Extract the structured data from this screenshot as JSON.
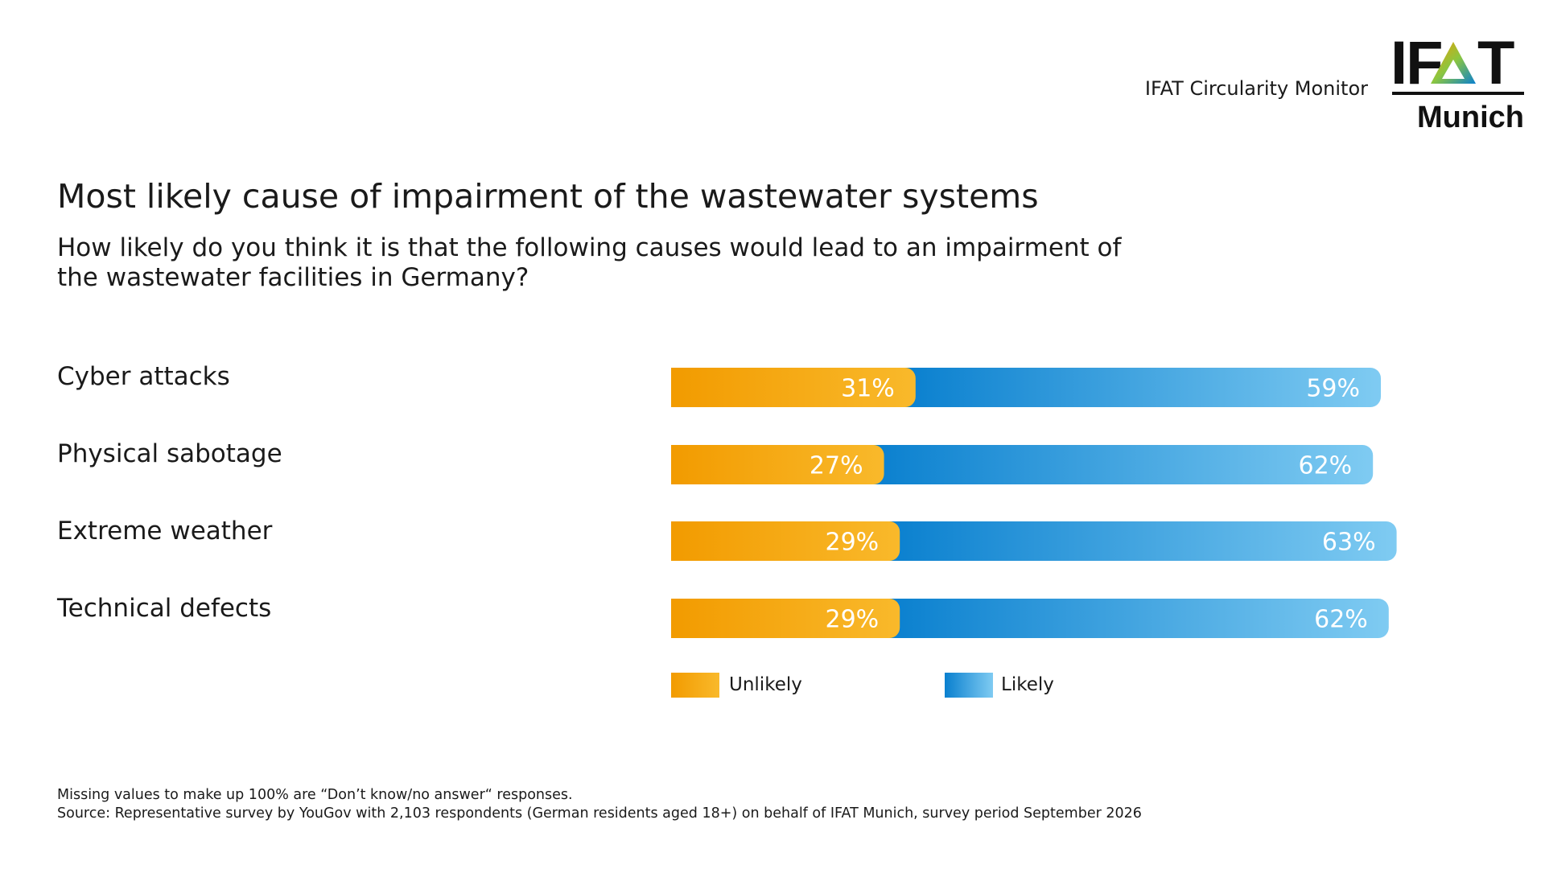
{
  "header": {
    "monitor_label": "IFAT Circularity Monitor",
    "logo_text_top": "IFAT",
    "logo_text_bottom": "Munich"
  },
  "colors": {
    "unlikely": "#F29B00",
    "unlikely_light": "#F9B92B",
    "likely": "#0A80CF",
    "likely_light": "#7FCBF2"
  },
  "chart_data": {
    "type": "bar",
    "stacked": true,
    "orientation": "horizontal",
    "title": "Most likely cause of impairment of the wastewater systems",
    "subtitle": "How likely do you think it is that the following causes would lead to an impairment of the wastewater facilities in Germany?",
    "categories": [
      "Cyber attacks",
      "Physical sabotage",
      "Extreme weather",
      "Technical defects"
    ],
    "series": [
      {
        "name": "Unlikely",
        "values": [
          31,
          27,
          29,
          29
        ],
        "labels": [
          "31%",
          "27%",
          "29%",
          "29%"
        ]
      },
      {
        "name": "Likely",
        "values": [
          59,
          62,
          63,
          62
        ],
        "labels": [
          "59%",
          "62%",
          "63%",
          "62%"
        ]
      }
    ],
    "xlim": [
      0,
      100
    ],
    "legend": "bottom",
    "grid": false
  },
  "footnotes": {
    "line1": "Missing values to make up 100% are “Don’t know/no answer“ responses.",
    "line2": "Source: Representative survey by YouGov with 2,103 respondents (German residents aged 18+) on behalf of IFAT Munich, survey period September 2026"
  }
}
